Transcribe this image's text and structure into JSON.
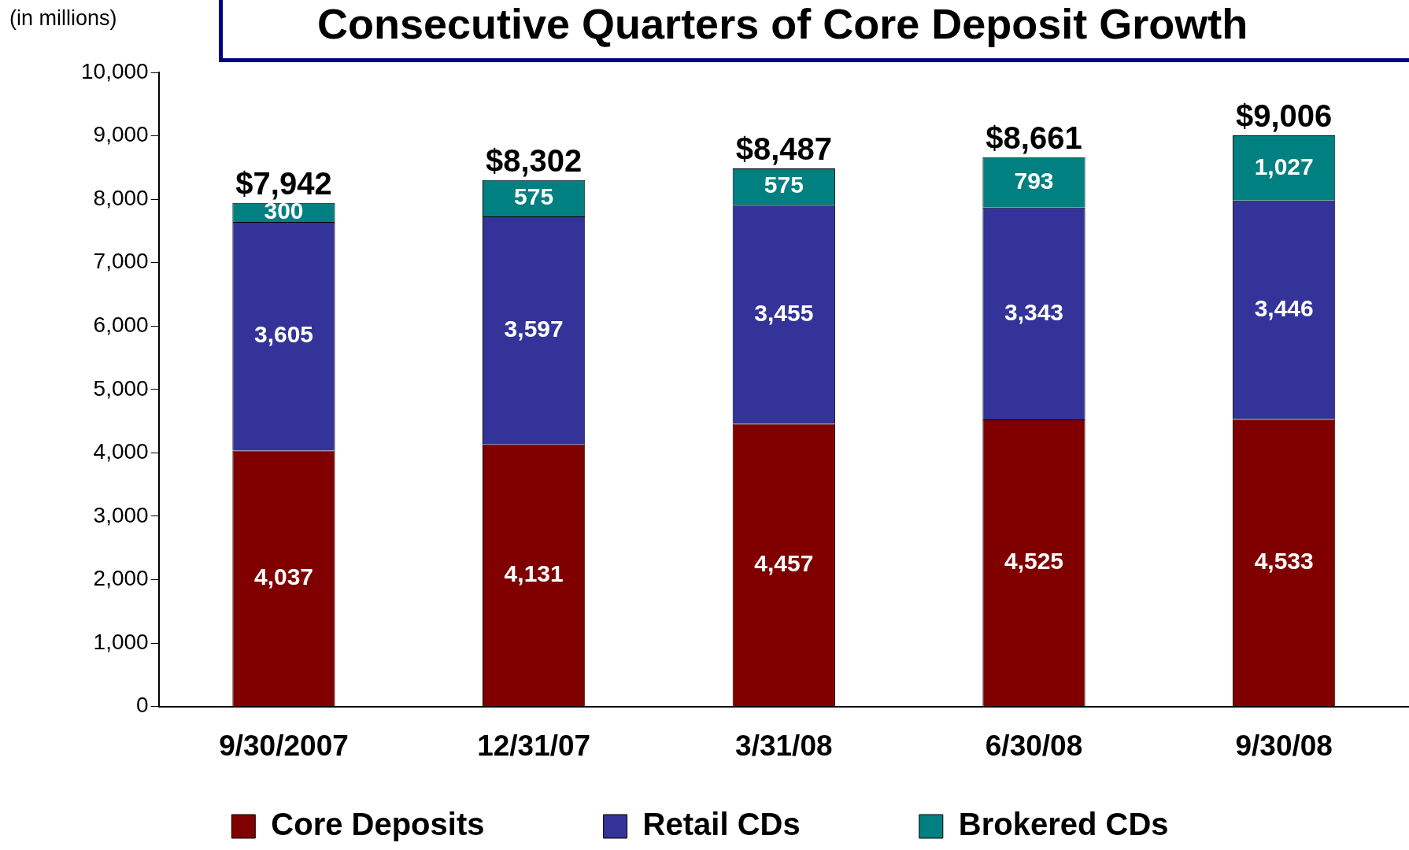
{
  "chart_data": {
    "type": "bar",
    "title": "Consecutive Quarters of Core Deposit Growth",
    "ylabel": "(in millions)",
    "categories": [
      "9/30/2007",
      "12/31/07",
      "3/31/08",
      "6/30/08",
      "9/30/08"
    ],
    "stacked": true,
    "series": [
      {
        "name": "Core Deposits",
        "color": "#800000",
        "values": [
          4037,
          4131,
          4457,
          4525,
          4533
        ],
        "value_labels": [
          "4,037",
          "4,131",
          "4,457",
          "4,525",
          "4,533"
        ]
      },
      {
        "name": "Retail CDs",
        "color": "#333399",
        "values": [
          3605,
          3597,
          3455,
          3343,
          3446
        ],
        "value_labels": [
          "3,605",
          "3,597",
          "3,455",
          "3,343",
          "3,446"
        ]
      },
      {
        "name": "Brokered CDs",
        "color": "#008080",
        "values": [
          300,
          575,
          575,
          793,
          1027
        ],
        "value_labels": [
          "300",
          "575",
          "575",
          "793",
          "1,027"
        ]
      }
    ],
    "totals": [
      "$7,942",
      "$8,302",
      "$8,487",
      "$8,661",
      "$9,006"
    ],
    "ylim": [
      0,
      10000
    ],
    "yticks": [
      0,
      {
        "value": 1000,
        "label": "1,000"
      },
      {
        "value": 2000,
        "label": "2,000"
      },
      {
        "value": 3000,
        "label": "3,000"
      },
      {
        "value": 4000,
        "label": "4,000"
      },
      {
        "value": 5000,
        "label": "5,000"
      },
      {
        "value": 6000,
        "label": "6,000"
      },
      {
        "value": 7000,
        "label": "7,000"
      },
      {
        "value": 8000,
        "label": "8,000"
      },
      {
        "value": 9000,
        "label": "9,000"
      },
      {
        "value": 10000,
        "label": "10,000"
      }
    ],
    "grid": false,
    "legend": "bottom"
  }
}
